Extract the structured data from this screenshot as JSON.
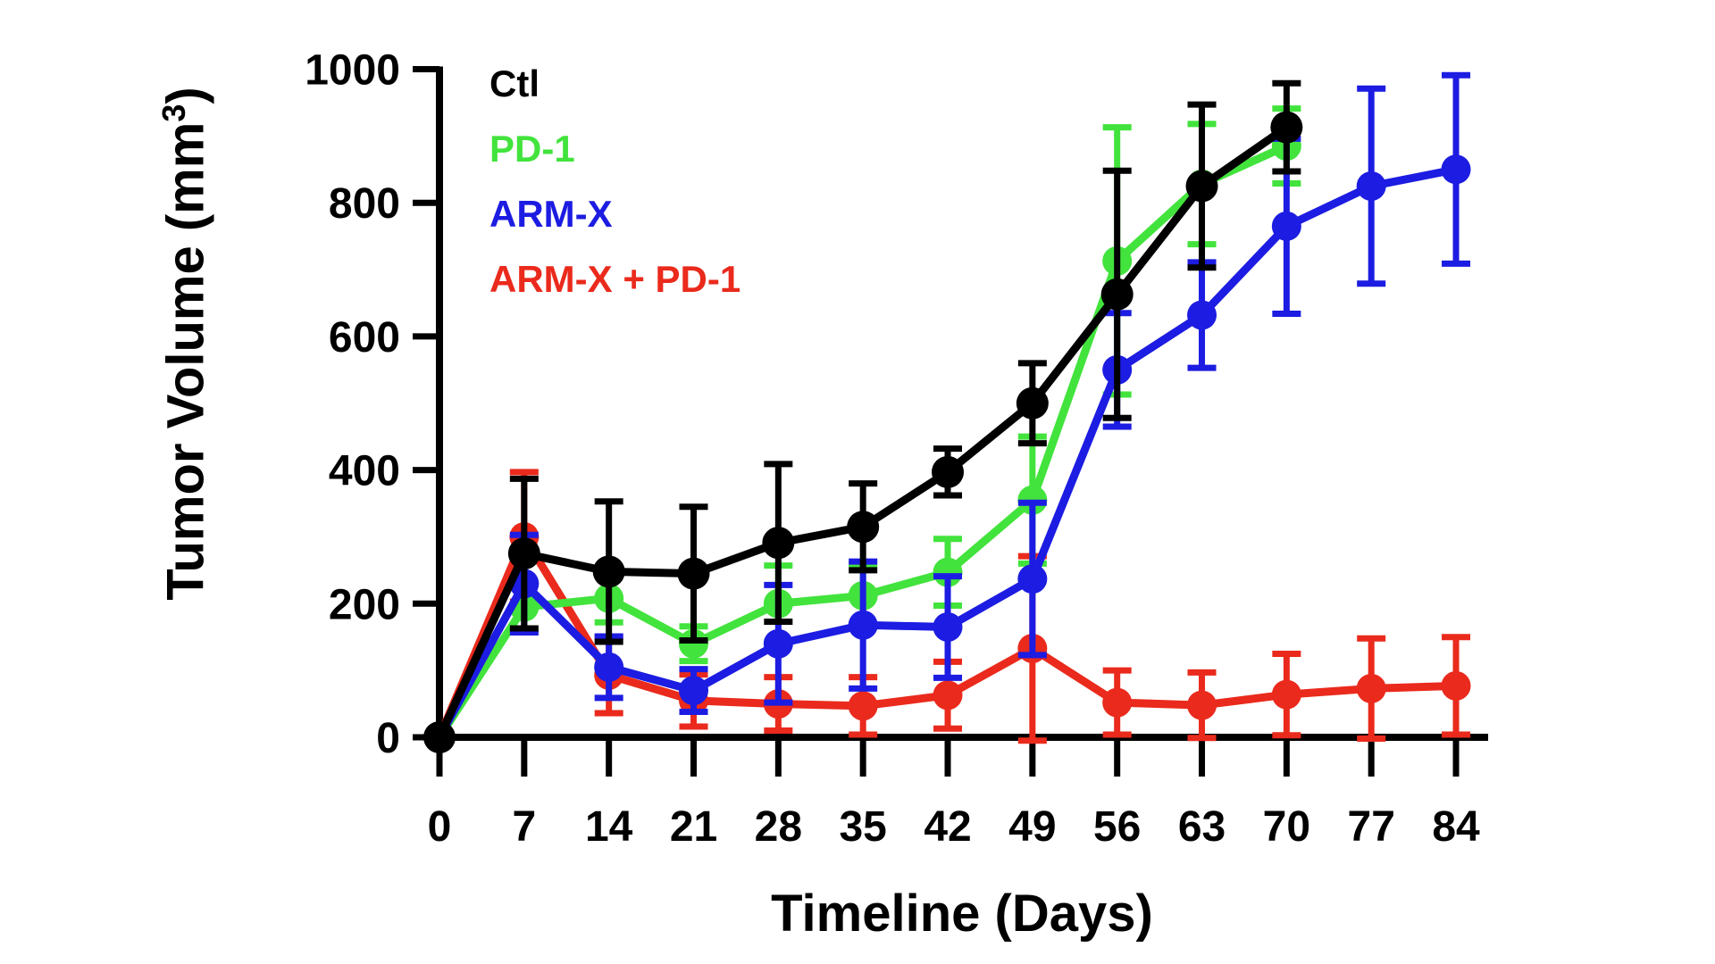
{
  "chart_data": {
    "type": "line",
    "title": "",
    "xlabel": "Timeline (Days)",
    "ylabel": {
      "pre": "Tumor Volume (mm",
      "sup": "3",
      "post": ")"
    },
    "x": [
      0,
      7,
      14,
      21,
      28,
      35,
      42,
      49,
      56,
      63,
      70,
      77,
      84
    ],
    "x_ticks": [
      0,
      7,
      14,
      21,
      28,
      35,
      42,
      49,
      56,
      63,
      70,
      77,
      84
    ],
    "y_ticks": [
      0,
      200,
      400,
      600,
      800,
      1000
    ],
    "xlim": [
      0,
      84
    ],
    "ylim": [
      0,
      1000
    ],
    "grid": false,
    "legend_position": "top-left-inside",
    "axis_color": "#000000",
    "series": [
      {
        "name": "Ctl",
        "color": "#000000",
        "values": [
          0,
          275,
          248,
          245,
          291,
          315,
          397,
          500,
          663,
          825,
          913
        ],
        "errors": [
          0,
          112,
          105,
          100,
          118,
          65,
          35,
          60,
          185,
          122,
          66
        ]
      },
      {
        "name": "PD-1",
        "color": "#42E33C",
        "values": [
          0,
          195,
          208,
          140,
          200,
          212,
          247,
          355,
          713,
          828,
          885
        ],
        "errors": [
          0,
          35,
          36,
          26,
          57,
          47,
          50,
          95,
          200,
          90,
          56
        ]
      },
      {
        "name": "ARM-X",
        "color": "#1C1CE2",
        "values": [
          0,
          230,
          105,
          70,
          140,
          168,
          165,
          237,
          550,
          632,
          765,
          825,
          850
        ],
        "errors": [
          0,
          73,
          46,
          32,
          88,
          95,
          76,
          114,
          85,
          79,
          131,
          146,
          141
        ]
      },
      {
        "name": "ARM-X + PD-1",
        "color": "#EA2A1C",
        "values": [
          0,
          300,
          93,
          55,
          50,
          47,
          63,
          133,
          52,
          48,
          64,
          73,
          77
        ],
        "errors": [
          0,
          97,
          57,
          39,
          40,
          43,
          50,
          138,
          48,
          49,
          61,
          75,
          73
        ]
      }
    ]
  }
}
